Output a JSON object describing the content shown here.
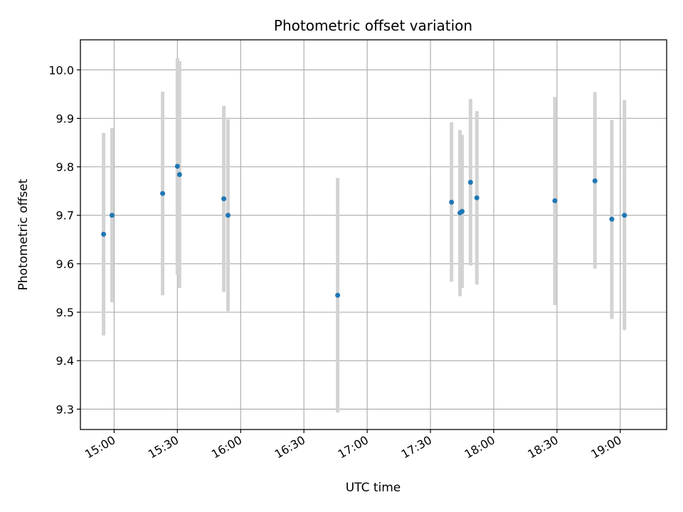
{
  "chart_data": {
    "type": "scatter",
    "title": "Photometric offset variation",
    "xlabel": "UTC time",
    "ylabel": "Photometric offset",
    "x_ticks": [
      "15:00",
      "15:30",
      "16:00",
      "16:30",
      "17:00",
      "17:30",
      "18:00",
      "18:30",
      "19:00"
    ],
    "y_ticks": [
      "9.3",
      "9.4",
      "9.5",
      "9.6",
      "9.7",
      "9.8",
      "9.9",
      "10.0"
    ],
    "xlim": [
      "14:44",
      "19:22"
    ],
    "ylim": [
      9.258,
      10.062
    ],
    "grid": true,
    "colors": {
      "point": "#1f77b4",
      "errorbar": "#d3d3d3",
      "grid": "#b0b0b0"
    },
    "series": [
      {
        "points": [
          {
            "time": "14:55",
            "y": 9.661,
            "err_low": 9.452,
            "err_high": 9.87
          },
          {
            "time": "14:59",
            "y": 9.7,
            "err_low": 9.52,
            "err_high": 9.88
          },
          {
            "time": "15:23",
            "y": 9.745,
            "err_low": 9.535,
            "err_high": 9.955
          },
          {
            "time": "15:30",
            "y": 9.801,
            "err_low": 9.578,
            "err_high": 10.024
          },
          {
            "time": "15:31",
            "y": 9.784,
            "err_low": 9.55,
            "err_high": 10.018
          },
          {
            "time": "15:52",
            "y": 9.734,
            "err_low": 9.542,
            "err_high": 9.926
          },
          {
            "time": "15:54",
            "y": 9.7,
            "err_low": 9.502,
            "err_high": 9.898
          },
          {
            "time": "16:46",
            "y": 9.535,
            "err_low": 9.293,
            "err_high": 9.777
          },
          {
            "time": "17:40",
            "y": 9.727,
            "err_low": 9.563,
            "err_high": 9.892
          },
          {
            "time": "17:44",
            "y": 9.705,
            "err_low": 9.533,
            "err_high": 9.876
          },
          {
            "time": "17:45",
            "y": 9.708,
            "err_low": 9.55,
            "err_high": 9.866
          },
          {
            "time": "17:49",
            "y": 9.768,
            "err_low": 9.596,
            "err_high": 9.94
          },
          {
            "time": "17:52",
            "y": 9.736,
            "err_low": 9.557,
            "err_high": 9.915
          },
          {
            "time": "18:29",
            "y": 9.73,
            "err_low": 9.515,
            "err_high": 9.944
          },
          {
            "time": "18:48",
            "y": 9.771,
            "err_low": 9.59,
            "err_high": 9.954
          },
          {
            "time": "18:56",
            "y": 9.692,
            "err_low": 9.486,
            "err_high": 9.897
          },
          {
            "time": "19:02",
            "y": 9.7,
            "err_low": 9.463,
            "err_high": 9.938
          }
        ]
      }
    ]
  }
}
